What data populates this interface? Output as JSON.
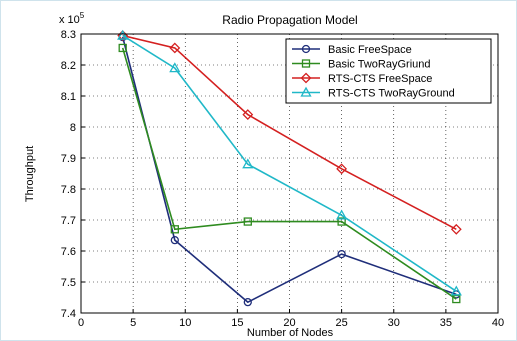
{
  "chart_data": {
    "type": "line",
    "title": "Radio Propagation Model",
    "xlabel": "Number of Nodes",
    "ylabel": "Throughput",
    "y_multiplier_label": "x 10",
    "y_multiplier_exponent": "5",
    "xlim": [
      0,
      40
    ],
    "ylim": [
      7.4,
      8.3
    ],
    "xticks": [
      "0",
      "5",
      "10",
      "15",
      "20",
      "25",
      "30",
      "35",
      "40"
    ],
    "yticks": [
      "7.4",
      "7.5",
      "7.6",
      "7.7",
      "7.8",
      "7.9",
      "8",
      "8.1",
      "8.2",
      "8.3"
    ],
    "grid": true,
    "legend_position": "top-right",
    "series": [
      {
        "name": "Basic  FreeSpace",
        "color": "#1f2e7a",
        "marker": "circle",
        "x": [
          4,
          9,
          16,
          25,
          36
        ],
        "y": [
          8.29,
          7.635,
          7.435,
          7.59,
          7.46
        ]
      },
      {
        "name": "Basic  TwoRayGriund",
        "color": "#2e8b1f",
        "marker": "square",
        "x": [
          4,
          9,
          16,
          25,
          36
        ],
        "y": [
          8.255,
          7.67,
          7.695,
          7.695,
          7.445
        ]
      },
      {
        "name": "RTS-CTS  FreeSpace",
        "color": "#d42020",
        "marker": "diamond",
        "x": [
          4,
          9,
          16,
          25,
          36
        ],
        "y": [
          8.295,
          8.255,
          8.04,
          7.865,
          7.67
        ]
      },
      {
        "name": "RTS-CTS  TwoRayGround",
        "color": "#20b8c8",
        "marker": "triangle",
        "x": [
          4,
          9,
          16,
          25,
          36
        ],
        "y": [
          8.295,
          8.19,
          7.88,
          7.715,
          7.47
        ]
      }
    ]
  }
}
